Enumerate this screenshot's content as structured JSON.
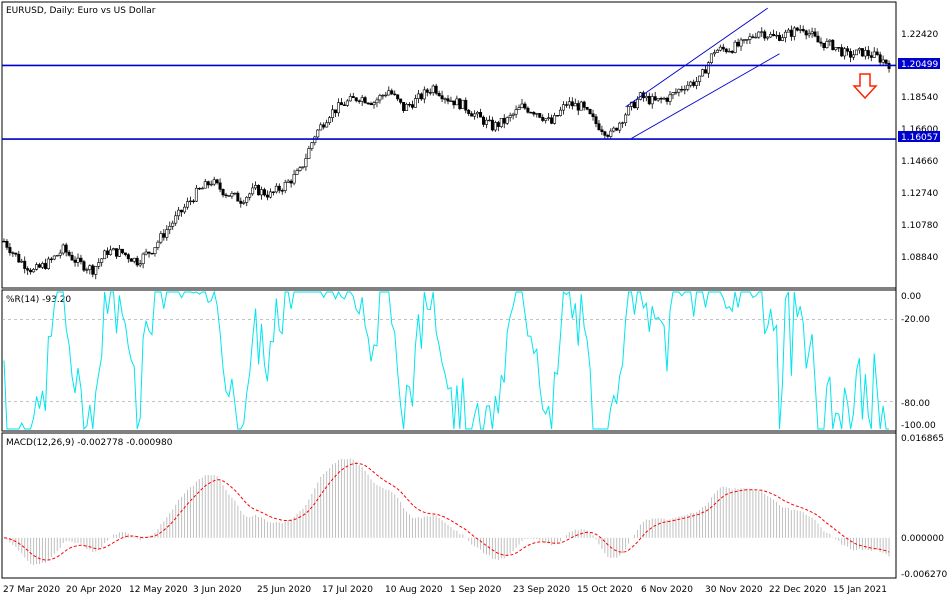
{
  "chart": {
    "symbol_title": "EURUSD, Daily:  Euro vs US Dollar",
    "colors": {
      "background": "#ffffff",
      "axis": "#000000",
      "candle": "#000000",
      "support_line": "#0000cd",
      "channel": "#0000cd",
      "wpr_line": "#00e5ee",
      "macd_hist": "#c0c0c0",
      "macd_signal": "#ff0000",
      "arrow": "#ff2400",
      "price_label_bg": "#0000cd"
    },
    "price_axis": {
      "ticks": [
        "1.22420",
        "1.18540",
        "1.16600",
        "1.14660",
        "1.12740",
        "1.10780",
        "1.08840"
      ],
      "current_label": "1.20499",
      "support_label": "1.16057",
      "current_value": 1.20499,
      "support_value": 1.16057,
      "range": [
        1.072,
        1.242
      ]
    },
    "wpr": {
      "title": "%R(14) -93.20",
      "ticks": [
        "0.00",
        "-20.00",
        "-80.00",
        "-100.00"
      ],
      "levels": [
        -20,
        -80
      ]
    },
    "macd": {
      "title": "MACD(12,26,9) -0.002778 -0.000980",
      "ticks": [
        "0.016865",
        "0.000000",
        "-0.006270"
      ],
      "range": [
        -0.00627,
        0.016865
      ]
    },
    "time_axis": [
      "27 Mar 2020",
      "20 Apr 2020",
      "12 May 2020",
      "3 Jun 2020",
      "25 Jun 2020",
      "17 Jul 2020",
      "10 Aug 2020",
      "1 Sep 2020",
      "23 Sep 2020",
      "15 Oct 2020",
      "6 Nov 2020",
      "30 Nov 2020",
      "22 Dec 2020",
      "15 Jan 2021"
    ],
    "signal_arrow": "down-arrow-icon"
  },
  "chart_data": {
    "type": "candlestick",
    "title": "EURUSD, Daily:  Euro vs US Dollar",
    "xlabel": "",
    "ylabel": "",
    "ylim": [
      1.072,
      1.242
    ],
    "close_path": [
      [
        0,
        1.099
      ],
      [
        5,
        1.088
      ],
      [
        10,
        1.081
      ],
      [
        15,
        1.086
      ],
      [
        20,
        1.094
      ],
      [
        25,
        1.086
      ],
      [
        30,
        1.082
      ],
      [
        35,
        1.093
      ],
      [
        40,
        1.092
      ],
      [
        45,
        1.087
      ],
      [
        50,
        1.094
      ],
      [
        55,
        1.106
      ],
      [
        60,
        1.117
      ],
      [
        65,
        1.128
      ],
      [
        70,
        1.135
      ],
      [
        75,
        1.128
      ],
      [
        80,
        1.124
      ],
      [
        85,
        1.13
      ],
      [
        90,
        1.127
      ],
      [
        95,
        1.133
      ],
      [
        100,
        1.141
      ],
      [
        105,
        1.163
      ],
      [
        110,
        1.176
      ],
      [
        115,
        1.182
      ],
      [
        120,
        1.186
      ],
      [
        125,
        1.183
      ],
      [
        130,
        1.19
      ],
      [
        135,
        1.179
      ],
      [
        140,
        1.185
      ],
      [
        145,
        1.192
      ],
      [
        150,
        1.185
      ],
      [
        155,
        1.181
      ],
      [
        160,
        1.174
      ],
      [
        165,
        1.168
      ],
      [
        170,
        1.172
      ],
      [
        175,
        1.18
      ],
      [
        180,
        1.177
      ],
      [
        185,
        1.17
      ],
      [
        190,
        1.182
      ],
      [
        195,
        1.18
      ],
      [
        200,
        1.17
      ],
      [
        205,
        1.163
      ],
      [
        210,
        1.176
      ],
      [
        215,
        1.186
      ],
      [
        220,
        1.183
      ],
      [
        225,
        1.186
      ],
      [
        230,
        1.193
      ],
      [
        235,
        1.196
      ],
      [
        240,
        1.214
      ],
      [
        245,
        1.215
      ],
      [
        250,
        1.218
      ],
      [
        255,
        1.226
      ],
      [
        260,
        1.222
      ],
      [
        265,
        1.224
      ],
      [
        270,
        1.228
      ],
      [
        275,
        1.219
      ],
      [
        280,
        1.217
      ],
      [
        285,
        1.211
      ],
      [
        290,
        1.213
      ],
      [
        295,
        1.21
      ],
      [
        300,
        1.205
      ]
    ],
    "support_levels": [
      1.20499,
      1.16057
    ],
    "indicators": {
      "wpr": {
        "name": "%R(14)",
        "last": -93.2,
        "levels": [
          -20,
          -80
        ]
      },
      "macd": {
        "name": "MACD(12,26,9)",
        "main": -0.002778,
        "signal": -0.00098
      }
    }
  }
}
